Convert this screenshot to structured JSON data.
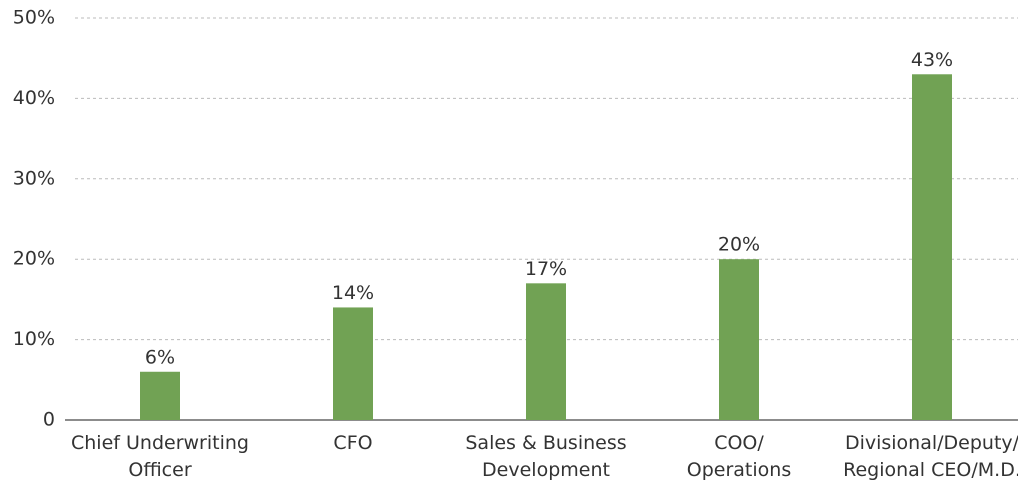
{
  "chart_data": {
    "type": "bar",
    "categories": [
      "Chief Underwriting\nOfficer",
      "CFO",
      "Sales & Business\nDevelopment",
      "COO/\nOperations",
      "Divisional/Deputy/\nRegional CEO/M.D."
    ],
    "values": [
      6,
      14,
      17,
      20,
      43
    ],
    "value_labels": [
      "6%",
      "14%",
      "17%",
      "20%",
      "43%"
    ],
    "color": "#71a254",
    "ylim": [
      0,
      50
    ],
    "yticks": [
      0,
      {
        "value": 10,
        "label": "10%"
      },
      {
        "value": 20,
        "label": "20%"
      },
      {
        "value": 30,
        "label": "30%"
      },
      {
        "value": 40,
        "label": "40%"
      },
      {
        "value": 50,
        "label": "50%"
      }
    ],
    "grid": true
  }
}
